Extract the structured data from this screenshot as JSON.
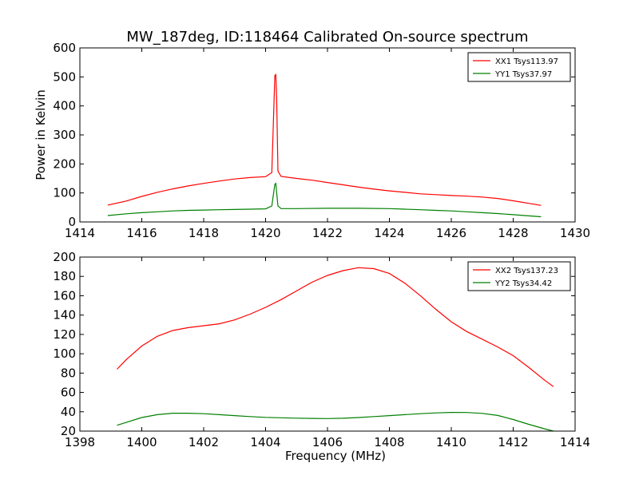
{
  "figure": {
    "title": "MW_187deg, ID:118464 Calibrated On-source spectrum",
    "background": "#ffffff"
  },
  "chart_data": [
    {
      "type": "line",
      "ylabel": "Power in Kelvin",
      "xlabel": "",
      "xlim": [
        1414,
        1430
      ],
      "ylim": [
        0,
        600
      ],
      "xticks": [
        1414,
        1416,
        1418,
        1420,
        1422,
        1424,
        1426,
        1428,
        1430
      ],
      "yticks": [
        0,
        100,
        200,
        300,
        400,
        500,
        600
      ],
      "legend_position": "top-right",
      "grid": false,
      "series": [
        {
          "name": "XX1 Tsys113.97",
          "color": "#ff0000",
          "x": [
            1414.9,
            1415.5,
            1416.0,
            1416.5,
            1417.0,
            1417.5,
            1418.0,
            1418.5,
            1419.0,
            1419.5,
            1420.0,
            1420.2,
            1420.3,
            1420.33,
            1420.36,
            1420.4,
            1420.5,
            1421.0,
            1421.5,
            1422.0,
            1422.5,
            1423.0,
            1423.5,
            1424.0,
            1424.5,
            1425.0,
            1425.5,
            1426.0,
            1426.5,
            1427.0,
            1427.5,
            1428.0,
            1428.5,
            1428.9
          ],
          "y": [
            58,
            72,
            88,
            102,
            114,
            124,
            133,
            141,
            148,
            153,
            156,
            170,
            505,
            508,
            420,
            175,
            157,
            150,
            144,
            136,
            128,
            120,
            113,
            107,
            102,
            97,
            94,
            91,
            89,
            86,
            81,
            73,
            64,
            57
          ]
        },
        {
          "name": "YY1 Tsys37.97",
          "color": "#008000",
          "x": [
            1414.9,
            1415.5,
            1416.0,
            1416.5,
            1417.0,
            1417.5,
            1418.0,
            1418.5,
            1419.0,
            1419.5,
            1420.0,
            1420.2,
            1420.3,
            1420.33,
            1420.36,
            1420.4,
            1420.5,
            1421.0,
            1422.0,
            1423.0,
            1424.0,
            1424.5,
            1425.0,
            1425.5,
            1426.0,
            1426.5,
            1427.0,
            1427.5,
            1428.0,
            1428.5,
            1428.9
          ],
          "y": [
            22,
            28,
            32,
            35,
            38,
            40,
            41,
            42,
            43,
            44,
            45,
            55,
            130,
            133,
            100,
            55,
            46,
            46,
            47,
            47,
            46,
            44,
            42,
            40,
            38,
            35,
            32,
            29,
            25,
            21,
            18
          ]
        }
      ]
    },
    {
      "type": "line",
      "ylabel": "",
      "xlabel": "Frequency (MHz)",
      "xlim": [
        1398,
        1414
      ],
      "ylim": [
        20,
        200
      ],
      "xticks": [
        1398,
        1400,
        1402,
        1404,
        1406,
        1408,
        1410,
        1412,
        1414
      ],
      "yticks": [
        20,
        40,
        60,
        80,
        100,
        120,
        140,
        160,
        180,
        200
      ],
      "legend_position": "top-right",
      "grid": false,
      "series": [
        {
          "name": "XX2 Tsys137.23",
          "color": "#ff0000",
          "x": [
            1399.2,
            1399.5,
            1400.0,
            1400.5,
            1401.0,
            1401.5,
            1402.0,
            1402.5,
            1403.0,
            1403.5,
            1404.0,
            1404.5,
            1405.0,
            1405.5,
            1406.0,
            1406.5,
            1407.0,
            1407.5,
            1408.0,
            1408.5,
            1409.0,
            1409.5,
            1410.0,
            1410.5,
            1411.0,
            1411.5,
            1412.0,
            1412.5,
            1413.0,
            1413.3
          ],
          "y": [
            84,
            94,
            108,
            118,
            124,
            127,
            129,
            131,
            135,
            141,
            148,
            156,
            165,
            174,
            181,
            186,
            189,
            188,
            183,
            173,
            160,
            146,
            133,
            123,
            115,
            107,
            98,
            86,
            73,
            66
          ]
        },
        {
          "name": "YY2 Tsys34.42",
          "color": "#008000",
          "x": [
            1399.2,
            1399.5,
            1400.0,
            1400.5,
            1401.0,
            1401.5,
            1402.0,
            1402.5,
            1403.0,
            1403.5,
            1404.0,
            1404.5,
            1405.0,
            1405.5,
            1406.0,
            1406.5,
            1407.0,
            1407.5,
            1408.0,
            1408.5,
            1409.0,
            1409.5,
            1410.0,
            1410.5,
            1411.0,
            1411.5,
            1412.0,
            1412.5,
            1413.0,
            1413.3
          ],
          "y": [
            26,
            29,
            34,
            37,
            38.5,
            38.5,
            38,
            37,
            36,
            35,
            34.2,
            33.8,
            33.4,
            33.1,
            33,
            33.3,
            34,
            35,
            36,
            37,
            38,
            38.8,
            39.3,
            39.2,
            38.3,
            36.2,
            32,
            27,
            22.5,
            20
          ]
        }
      ]
    }
  ]
}
